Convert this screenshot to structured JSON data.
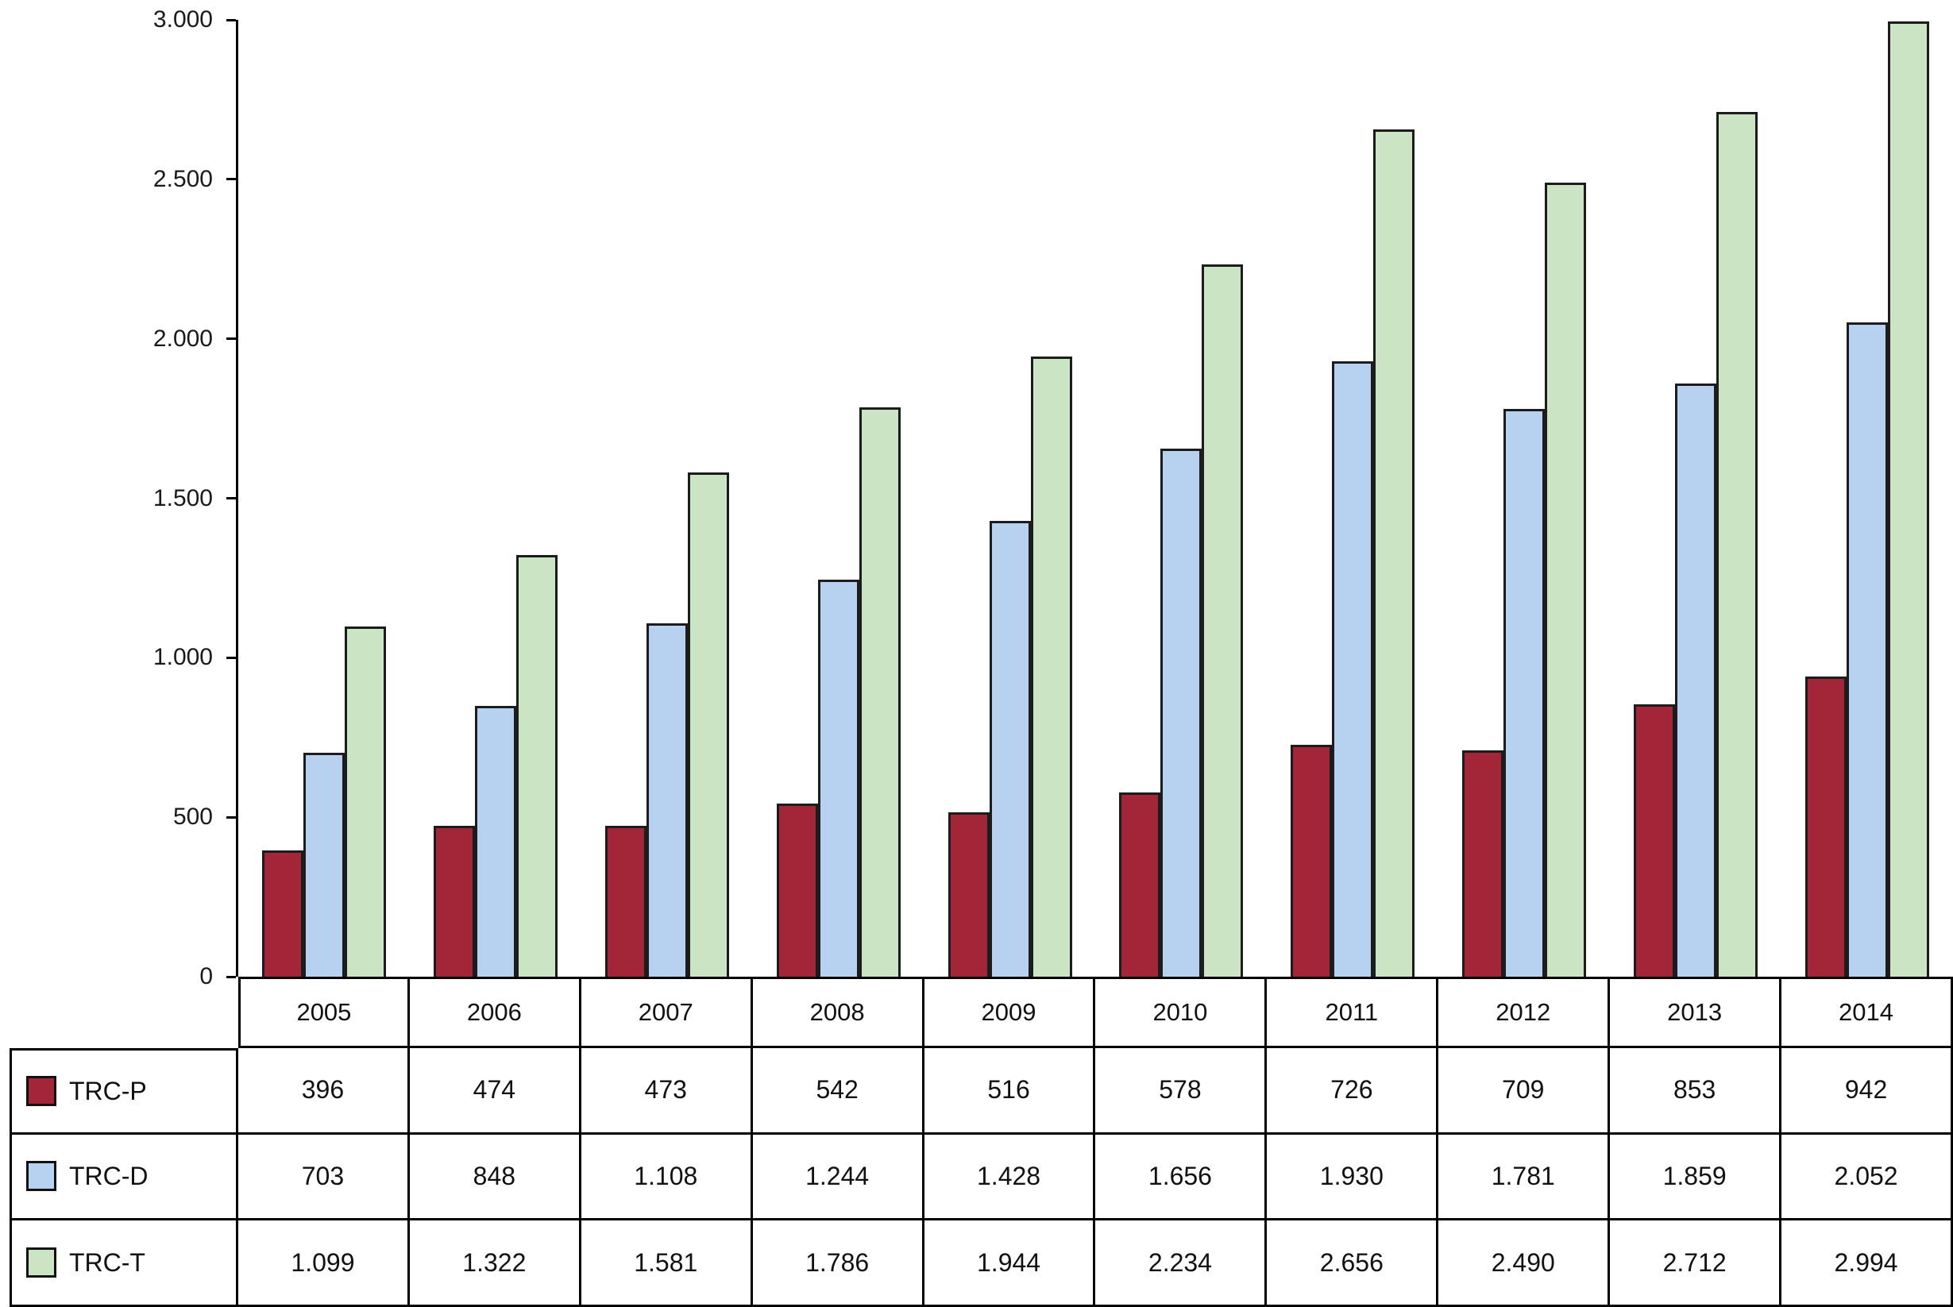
{
  "chart_data": {
    "type": "bar",
    "title": "",
    "xlabel": "",
    "ylabel": "",
    "ylim": [
      0,
      3000
    ],
    "grid": false,
    "legend_position": "table-left",
    "ytick_values": [
      0,
      500,
      1000,
      1500,
      2000,
      2500,
      3000
    ],
    "ytick_labels": [
      "0",
      "500",
      "1.000",
      "1.500",
      "2.000",
      "2.500",
      "3.000"
    ],
    "categories": [
      "2005",
      "2006",
      "2007",
      "2008",
      "2009",
      "2010",
      "2011",
      "2012",
      "2013",
      "2014"
    ],
    "series": [
      {
        "name": "TRC-P",
        "color": "#A32638",
        "values": [
          396,
          474,
          473,
          542,
          516,
          578,
          726,
          709,
          853,
          942
        ],
        "labels": [
          "396",
          "474",
          "473",
          "542",
          "516",
          "578",
          "726",
          "709",
          "853",
          "942"
        ]
      },
      {
        "name": "TRC-D",
        "color": "#B7D1F0",
        "values": [
          703,
          848,
          1108,
          1244,
          1428,
          1656,
          1930,
          1781,
          1859,
          2052
        ],
        "labels": [
          "703",
          "848",
          "1.108",
          "1.244",
          "1.428",
          "1.656",
          "1.930",
          "1.781",
          "1.859",
          "2.052"
        ]
      },
      {
        "name": "TRC-T",
        "color": "#CBE4C4",
        "values": [
          1099,
          1322,
          1581,
          1786,
          1944,
          2234,
          2656,
          2490,
          2712,
          2994
        ],
        "labels": [
          "1.099",
          "1.322",
          "1.581",
          "1.786",
          "1.944",
          "2.234",
          "2.656",
          "2.490",
          "2.712",
          "2.994"
        ]
      }
    ]
  }
}
